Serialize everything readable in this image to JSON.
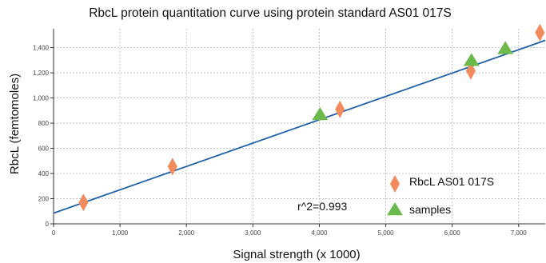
{
  "chart_data": {
    "type": "scatter",
    "title": "RbcL protein quantitation curve using protein standard AS01 017S",
    "xlabel": "Signal strength (x 1000)",
    "ylabel": "RbcL (femtomoles)",
    "xlim": [
      0,
      7400
    ],
    "ylim": [
      0,
      1550
    ],
    "x_ticks": [
      0,
      1000,
      2000,
      3000,
      4000,
      5000,
      6000,
      7000
    ],
    "x_tick_labels": [
      "0",
      "1,000",
      "2,000",
      "3,000",
      "4,000",
      "5,000",
      "6,000",
      "7,000"
    ],
    "y_ticks": [
      0,
      200,
      400,
      600,
      800,
      1000,
      1200,
      1400
    ],
    "y_tick_labels": [
      "0",
      "200",
      "400",
      "600",
      "800",
      "1,000",
      "1,200",
      "1,400"
    ],
    "grid": true,
    "legend_position": "bottom-right",
    "series": [
      {
        "name": "RbcL AS01 017S",
        "marker": "diamond",
        "color": "#f28a5c",
        "points": [
          {
            "x": 450,
            "y": 170
          },
          {
            "x": 1790,
            "y": 455
          },
          {
            "x": 4310,
            "y": 910
          },
          {
            "x": 6280,
            "y": 1215
          },
          {
            "x": 7320,
            "y": 1520
          }
        ]
      },
      {
        "name": "samples",
        "marker": "triangle",
        "color": "#6cba4c",
        "points": [
          {
            "x": 4010,
            "y": 870
          },
          {
            "x": 6290,
            "y": 1300
          },
          {
            "x": 6800,
            "y": 1395
          }
        ]
      }
    ],
    "fit_line": {
      "color": "#1f5fa8",
      "intercept": 85,
      "slope": 0.1855,
      "x_range": [
        0,
        7400
      ]
    },
    "annotation": "r^2=0.993"
  }
}
